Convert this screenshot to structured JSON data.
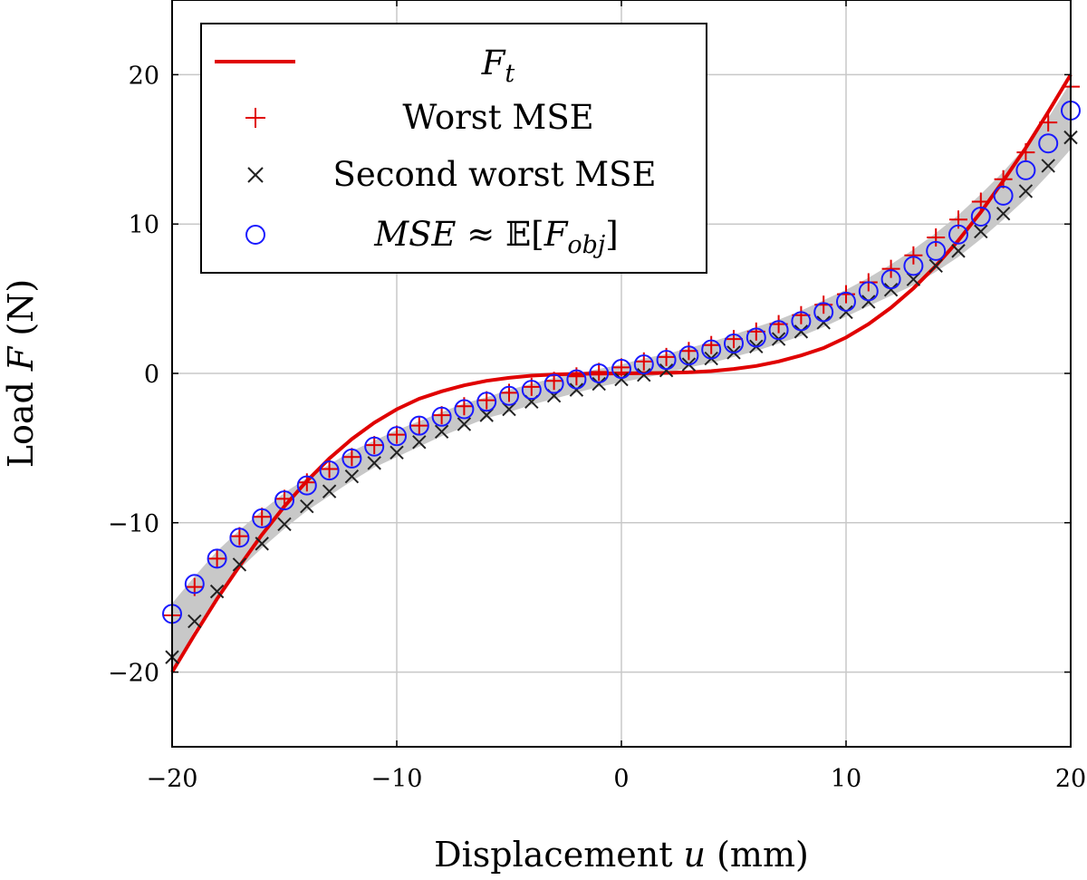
{
  "chart_data": {
    "type": "scatter",
    "xlabel": {
      "text": "Displacement ",
      "symbol": "u",
      "unit": " (mm)"
    },
    "ylabel": {
      "text": "Load ",
      "symbol": "F",
      "unit": " (N)"
    },
    "xlim": [
      -20,
      20
    ],
    "ylim": [
      -25,
      25
    ],
    "x_ticks": [
      -20,
      -10,
      0,
      10,
      20
    ],
    "y_ticks": [
      -20,
      -10,
      0,
      10,
      20
    ],
    "x_tick_labels": [
      "−20",
      "−10",
      "0",
      "10",
      "20"
    ],
    "y_tick_labels": [
      "−20",
      "−10",
      "0",
      "10",
      "20"
    ],
    "grid": true,
    "legend_position": "top-left",
    "x": [
      -20,
      -19,
      -18,
      -17,
      -16,
      -15,
      -14,
      -13,
      -12,
      -11,
      -10,
      -9,
      -8,
      -7,
      -6,
      -5,
      -4,
      -3,
      -2,
      -1,
      0,
      1,
      2,
      3,
      4,
      5,
      6,
      7,
      8,
      9,
      10,
      11,
      12,
      13,
      14,
      15,
      16,
      17,
      18,
      19,
      20
    ],
    "series": [
      {
        "name": "F_t",
        "legend": {
          "base": "F",
          "sub": "t"
        },
        "kind": "line",
        "color": "#e00000",
        "curve": {
          "x": [
            -20,
            -19,
            -18,
            -17,
            -16,
            -15,
            -14,
            -13,
            -12,
            -11,
            -10,
            -9,
            -8,
            -7,
            -6,
            -5,
            -4,
            -3,
            -2,
            -1,
            0,
            1,
            2,
            3,
            4,
            5,
            6,
            7,
            8,
            9,
            10,
            11,
            12,
            13,
            14,
            15,
            16,
            17,
            18,
            19,
            20
          ],
          "y": [
            -20,
            -17.5,
            -15.1,
            -12.9,
            -10.8,
            -8.9,
            -7.2,
            -5.7,
            -4.4,
            -3.3,
            -2.4,
            -1.7,
            -1.2,
            -0.8,
            -0.5,
            -0.3,
            -0.15,
            -0.07,
            -0.03,
            -0.01,
            0,
            0.01,
            0.03,
            0.07,
            0.15,
            0.3,
            0.5,
            0.8,
            1.2,
            1.7,
            2.4,
            3.3,
            4.4,
            5.7,
            7.2,
            8.9,
            10.8,
            12.9,
            15.1,
            17.5,
            20
          ]
        }
      },
      {
        "name": "Worst MSE",
        "kind": "plus",
        "color": "#e00000",
        "values": [
          -16.2,
          -14.3,
          -12.4,
          -10.9,
          -9.6,
          -8.4,
          -7.3,
          -6.4,
          -5.6,
          -4.8,
          -4.1,
          -3.5,
          -2.8,
          -2.2,
          -1.8,
          -1.3,
          -0.9,
          -0.5,
          -0.2,
          0.1,
          0.4,
          0.8,
          1.1,
          1.5,
          1.9,
          2.3,
          2.8,
          3.3,
          3.9,
          4.6,
          5.3,
          6.1,
          7.0,
          7.9,
          9.1,
          10.3,
          11.5,
          13.0,
          14.8,
          16.8,
          19.2
        ]
      },
      {
        "name": "Second worst MSE",
        "kind": "cross",
        "color": "#222222",
        "values": [
          -19.0,
          -16.6,
          -14.6,
          -12.8,
          -11.4,
          -10.1,
          -8.9,
          -7.9,
          -6.9,
          -6.0,
          -5.3,
          -4.6,
          -3.9,
          -3.4,
          -2.8,
          -2.4,
          -1.9,
          -1.5,
          -1.1,
          -0.7,
          -0.4,
          -0.1,
          0.2,
          0.6,
          1.0,
          1.4,
          1.8,
          2.3,
          2.8,
          3.4,
          4.1,
          4.8,
          5.6,
          6.3,
          7.2,
          8.2,
          9.5,
          10.7,
          12.2,
          13.9,
          15.8
        ]
      },
      {
        "name": "MSE ≈ E[F_obj]",
        "legend": {
          "lhs": "MSE",
          "approx": " ≈ ",
          "E": "𝔼",
          "open": "[",
          "base": "F",
          "sub": "obj",
          "close": "]"
        },
        "kind": "circle",
        "color": "#1a1aff",
        "values": [
          -16.1,
          -14.1,
          -12.4,
          -11.0,
          -9.7,
          -8.5,
          -7.5,
          -6.5,
          -5.7,
          -4.9,
          -4.2,
          -3.5,
          -2.9,
          -2.4,
          -1.9,
          -1.5,
          -1.1,
          -0.7,
          -0.4,
          0.0,
          0.3,
          0.6,
          0.9,
          1.2,
          1.6,
          2.0,
          2.4,
          2.9,
          3.5,
          4.1,
          4.8,
          5.5,
          6.3,
          7.2,
          8.2,
          9.3,
          10.5,
          11.9,
          13.6,
          15.4,
          17.6
        ]
      }
    ],
    "band": {
      "color": "#c8c8c8",
      "lower": [
        -20.0,
        -17.2,
        -15.0,
        -13.1,
        -11.7,
        -10.4,
        -9.2,
        -8.2,
        -7.2,
        -6.3,
        -5.6,
        -4.9,
        -4.2,
        -3.6,
        -3.0,
        -2.6,
        -2.1,
        -1.7,
        -1.3,
        -0.9,
        -0.6,
        -0.3,
        0.0,
        0.4,
        0.7,
        1.1,
        1.5,
        2.0,
        2.5,
        3.1,
        3.8,
        4.5,
        5.2,
        5.9,
        6.8,
        7.8,
        9.0,
        10.3,
        11.7,
        13.3,
        15.0
      ],
      "upper": [
        -15.4,
        -13.6,
        -11.9,
        -10.5,
        -9.2,
        -8.0,
        -7.0,
        -6.1,
        -5.2,
        -4.5,
        -3.8,
        -3.2,
        -2.6,
        -2.0,
        -1.6,
        -1.1,
        -0.7,
        -0.3,
        0.0,
        0.3,
        0.6,
        1.0,
        1.3,
        1.7,
        2.1,
        2.6,
        3.1,
        3.6,
        4.2,
        4.9,
        5.6,
        6.4,
        7.3,
        8.3,
        9.4,
        10.6,
        12.0,
        13.5,
        15.2,
        17.1,
        19.5
      ]
    }
  }
}
